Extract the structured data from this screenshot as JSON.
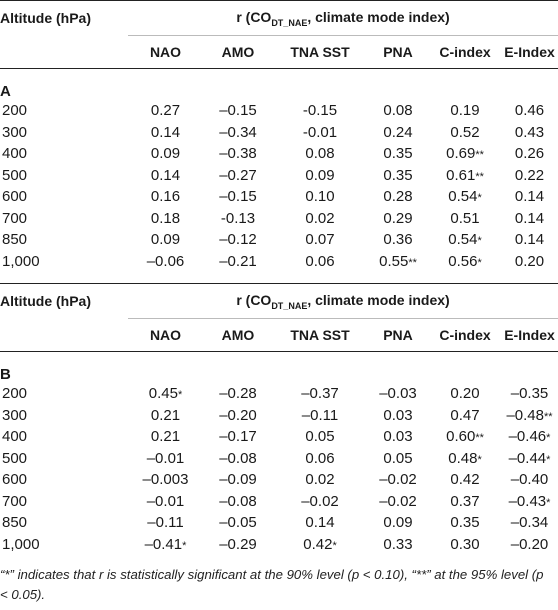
{
  "header": {
    "altitude_label": "Altitude (hPa)",
    "r_prefix": "r (CO",
    "r_sub": "DT_NAE",
    "r_suffix": ", climate mode index)",
    "columns": [
      "NAO",
      "AMO",
      "TNA SST",
      "PNA",
      "C-index",
      "E-Index"
    ]
  },
  "sections": [
    {
      "label": "A",
      "rows": [
        {
          "alt": "200",
          "cells": [
            {
              "v": "0.27",
              "s": ""
            },
            {
              "v": "–0.15",
              "s": ""
            },
            {
              "v": "-0.15",
              "s": ""
            },
            {
              "v": "0.08",
              "s": ""
            },
            {
              "v": "0.19",
              "s": ""
            },
            {
              "v": "0.46",
              "s": ""
            }
          ]
        },
        {
          "alt": "300",
          "cells": [
            {
              "v": "0.14",
              "s": ""
            },
            {
              "v": "–0.34",
              "s": ""
            },
            {
              "v": "-0.01",
              "s": ""
            },
            {
              "v": "0.24",
              "s": ""
            },
            {
              "v": "0.52",
              "s": ""
            },
            {
              "v": "0.43",
              "s": ""
            }
          ]
        },
        {
          "alt": "400",
          "cells": [
            {
              "v": "0.09",
              "s": ""
            },
            {
              "v": "–0.38",
              "s": ""
            },
            {
              "v": "0.08",
              "s": ""
            },
            {
              "v": "0.35",
              "s": ""
            },
            {
              "v": "0.69",
              "s": "**"
            },
            {
              "v": "0.26",
              "s": ""
            }
          ]
        },
        {
          "alt": "500",
          "cells": [
            {
              "v": "0.14",
              "s": ""
            },
            {
              "v": "–0.27",
              "s": ""
            },
            {
              "v": "0.09",
              "s": ""
            },
            {
              "v": "0.35",
              "s": ""
            },
            {
              "v": "0.61",
              "s": "**"
            },
            {
              "v": "0.22",
              "s": ""
            }
          ]
        },
        {
          "alt": "600",
          "cells": [
            {
              "v": "0.16",
              "s": ""
            },
            {
              "v": "–0.15",
              "s": ""
            },
            {
              "v": "0.10",
              "s": ""
            },
            {
              "v": "0.28",
              "s": ""
            },
            {
              "v": "0.54",
              "s": "*"
            },
            {
              "v": "0.14",
              "s": ""
            }
          ]
        },
        {
          "alt": "700",
          "cells": [
            {
              "v": "0.18",
              "s": ""
            },
            {
              "v": "-0.13",
              "s": ""
            },
            {
              "v": "0.02",
              "s": ""
            },
            {
              "v": "0.29",
              "s": ""
            },
            {
              "v": "0.51",
              "s": ""
            },
            {
              "v": "0.14",
              "s": ""
            }
          ]
        },
        {
          "alt": "850",
          "cells": [
            {
              "v": "0.09",
              "s": ""
            },
            {
              "v": "–0.12",
              "s": ""
            },
            {
              "v": "0.07",
              "s": ""
            },
            {
              "v": "0.36",
              "s": ""
            },
            {
              "v": "0.54",
              "s": "*"
            },
            {
              "v": "0.14",
              "s": ""
            }
          ]
        },
        {
          "alt": "1,000",
          "cells": [
            {
              "v": "–0.06",
              "s": ""
            },
            {
              "v": "–0.21",
              "s": ""
            },
            {
              "v": "0.06",
              "s": ""
            },
            {
              "v": "0.55",
              "s": "**"
            },
            {
              "v": "0.56",
              "s": "*"
            },
            {
              "v": "0.20",
              "s": ""
            }
          ]
        }
      ]
    },
    {
      "label": "B",
      "rows": [
        {
          "alt": "200",
          "cells": [
            {
              "v": "0.45",
              "s": "*"
            },
            {
              "v": "–0.28",
              "s": ""
            },
            {
              "v": "–0.37",
              "s": ""
            },
            {
              "v": "–0.03",
              "s": ""
            },
            {
              "v": "0.20",
              "s": ""
            },
            {
              "v": "–0.35",
              "s": ""
            }
          ]
        },
        {
          "alt": "300",
          "cells": [
            {
              "v": "0.21",
              "s": ""
            },
            {
              "v": "–0.20",
              "s": ""
            },
            {
              "v": "–0.11",
              "s": ""
            },
            {
              "v": "0.03",
              "s": ""
            },
            {
              "v": "0.47",
              "s": ""
            },
            {
              "v": "–0.48",
              "s": "**"
            }
          ]
        },
        {
          "alt": "400",
          "cells": [
            {
              "v": "0.21",
              "s": ""
            },
            {
              "v": "–0.17",
              "s": ""
            },
            {
              "v": "0.05",
              "s": ""
            },
            {
              "v": "0.03",
              "s": ""
            },
            {
              "v": "0.60",
              "s": "**"
            },
            {
              "v": "–0.46",
              "s": "*"
            }
          ]
        },
        {
          "alt": "500",
          "cells": [
            {
              "v": "–0.01",
              "s": ""
            },
            {
              "v": "–0.08",
              "s": ""
            },
            {
              "v": "0.06",
              "s": ""
            },
            {
              "v": "0.05",
              "s": ""
            },
            {
              "v": "0.48",
              "s": "*"
            },
            {
              "v": "–0.44",
              "s": "*"
            }
          ]
        },
        {
          "alt": "600",
          "cells": [
            {
              "v": "–0.003",
              "s": ""
            },
            {
              "v": "–0.09",
              "s": ""
            },
            {
              "v": "0.02",
              "s": ""
            },
            {
              "v": "–0.02",
              "s": ""
            },
            {
              "v": "0.42",
              "s": ""
            },
            {
              "v": "–0.40",
              "s": ""
            }
          ]
        },
        {
          "alt": "700",
          "cells": [
            {
              "v": "–0.01",
              "s": ""
            },
            {
              "v": "–0.08",
              "s": ""
            },
            {
              "v": "–0.02",
              "s": ""
            },
            {
              "v": "–0.02",
              "s": ""
            },
            {
              "v": "0.37",
              "s": ""
            },
            {
              "v": "–0.43",
              "s": "*"
            }
          ]
        },
        {
          "alt": "850",
          "cells": [
            {
              "v": "–0.11",
              "s": ""
            },
            {
              "v": "–0.05",
              "s": ""
            },
            {
              "v": "0.14",
              "s": ""
            },
            {
              "v": "0.09",
              "s": ""
            },
            {
              "v": "0.35",
              "s": ""
            },
            {
              "v": "–0.34",
              "s": ""
            }
          ]
        },
        {
          "alt": "1,000",
          "cells": [
            {
              "v": "–0.41",
              "s": "*"
            },
            {
              "v": "–0.29",
              "s": ""
            },
            {
              "v": "0.42",
              "s": "*"
            },
            {
              "v": "0.33",
              "s": ""
            },
            {
              "v": "0.30",
              "s": ""
            },
            {
              "v": "–0.20",
              "s": ""
            }
          ]
        }
      ]
    }
  ],
  "footnote": "“*” indicates that r is statistically significant at the 90% level (p < 0.10), “**” at the 95% level (p < 0.05)."
}
